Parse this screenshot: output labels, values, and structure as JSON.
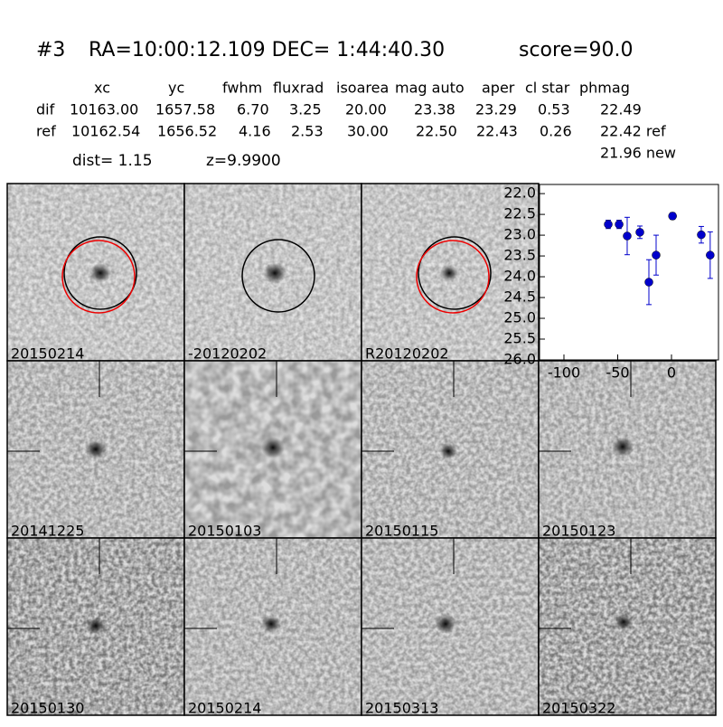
{
  "header": {
    "id": "#3",
    "coords": "RA=10:00:12.109 DEC= 1:44:40.30",
    "score": "score=90.0"
  },
  "table": {
    "columns": [
      "xc",
      "yc",
      "fwhm",
      "fluxrad",
      "isoarea",
      "mag auto",
      "aper",
      "cl star",
      "phmag"
    ],
    "rows": [
      [
        "dif",
        "10163.00",
        "1657.58",
        "6.70",
        "3.25",
        "20.00",
        "23.38",
        "23.29",
        "0.53",
        "22.49"
      ],
      [
        "ref",
        "10162.54",
        "1656.52",
        "4.16",
        "2.53",
        "30.00",
        "22.50",
        "22.43",
        "0.26",
        "22.42 ref"
      ]
    ],
    "extra": "21.96 new"
  },
  "dist": "dist=  1.15",
  "z": "z=9.9900",
  "panels": [
    "20150214",
    "-20120202",
    "R20120202",
    "20141225",
    "20150103",
    "20150115",
    "20150123",
    "20150130",
    "20150214",
    "20150313",
    "20150322"
  ],
  "chart_data": {
    "type": "scatter",
    "color": "#0000cc",
    "invert_y": true,
    "x": [
      -58.8,
      -48.7,
      -41.2,
      -29.4,
      -21,
      -14.3,
      1,
      27.7,
      36
    ],
    "values": [
      22.74,
      22.74,
      23.02,
      22.93,
      24.13,
      23.48,
      22.54,
      22.99,
      23.48
    ],
    "errors": [
      0.1,
      0.1,
      0.45,
      0.15,
      0.54,
      0.48,
      0.08,
      0.2,
      0.56
    ],
    "xlim": [
      -122.7,
      43.7
    ],
    "xticks": [
      -100,
      -50,
      0
    ],
    "ylim": [
      21.78,
      26.0
    ],
    "yticks": [
      {
        "value": 22,
        "label": "22.0"
      },
      {
        "value": 22.5,
        "label": "22.5"
      },
      {
        "value": 23,
        "label": "23.0"
      },
      {
        "value": 23.5,
        "label": "23.5"
      },
      {
        "value": 24,
        "label": "24.0"
      },
      {
        "value": 24.5,
        "label": "24.5"
      },
      {
        "value": 25,
        "label": "25.0"
      },
      {
        "value": 25.5,
        "label": "25.5"
      },
      {
        "value": 26,
        "label": "26.0"
      }
    ]
  }
}
